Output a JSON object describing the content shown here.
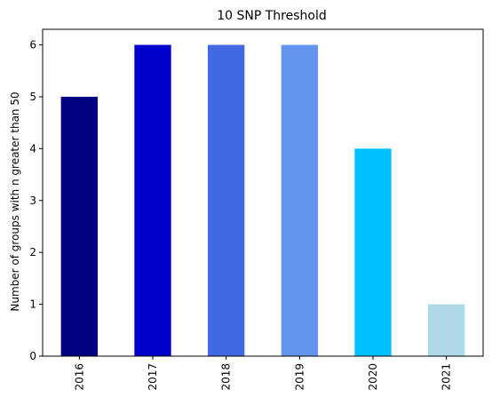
{
  "chart_data": {
    "type": "bar",
    "title": "10 SNP Threshold",
    "xlabel": "",
    "ylabel": "Number of groups with n greater than 50",
    "categories": [
      "2016",
      "2017",
      "2018",
      "2019",
      "2020",
      "2021"
    ],
    "values": [
      5,
      6,
      6,
      6,
      4,
      1
    ],
    "colors": [
      "#000080",
      "#0000cd",
      "#4169e1",
      "#6495ed",
      "#00bfff",
      "#add8e6"
    ],
    "ylim": [
      0,
      6.3
    ],
    "yticks": [
      0,
      1,
      2,
      3,
      4,
      5,
      6
    ],
    "grid": false,
    "legend": "none"
  }
}
